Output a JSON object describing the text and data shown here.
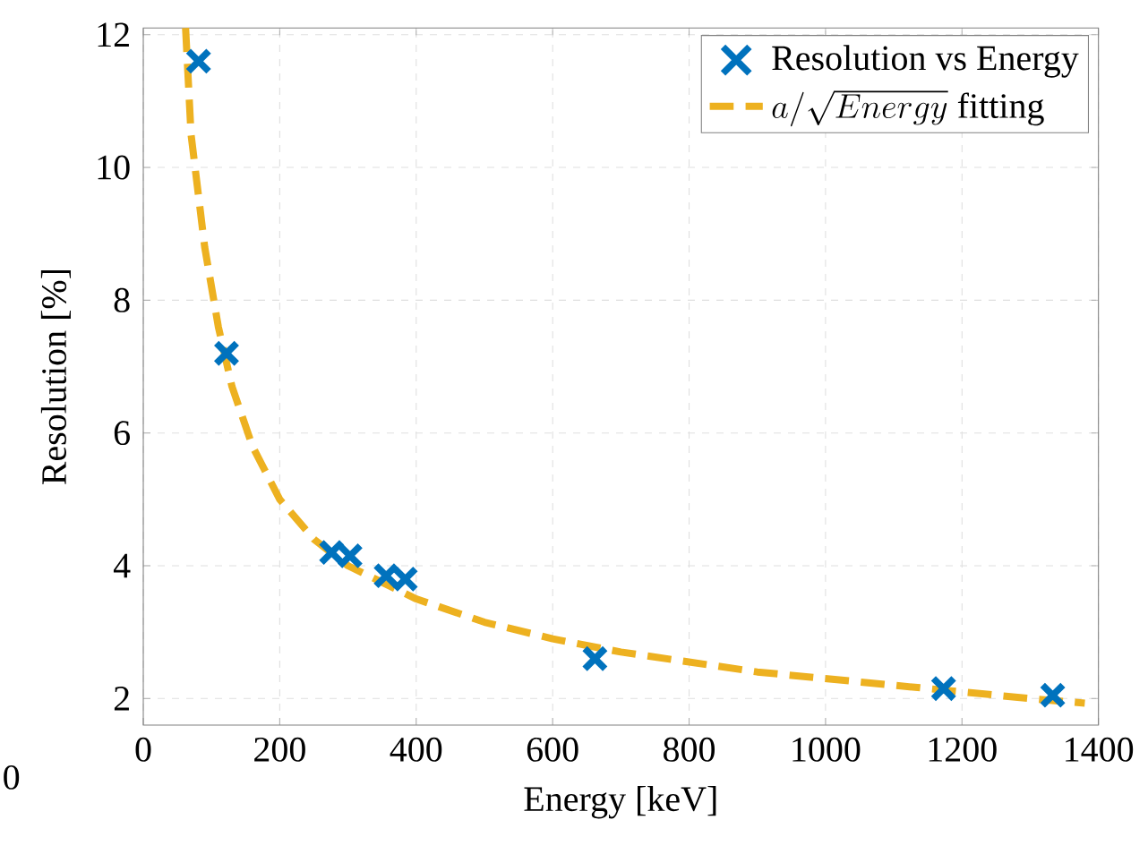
{
  "chart_data": {
    "type": "scatter",
    "xlabel": "Energy [keV]",
    "ylabel": "Resolution [%]",
    "xlim": [
      0,
      1400
    ],
    "ylim": [
      1.6,
      12.1
    ],
    "xticks": [
      0,
      200,
      400,
      600,
      800,
      1000,
      1200,
      1400
    ],
    "yticks": [
      2,
      4,
      6,
      8,
      10,
      12
    ],
    "grid": true,
    "legend": "top right",
    "annotations": [
      "0"
    ],
    "series": [
      {
        "name": "Resolution vs Energy",
        "marker": "cross",
        "color": "#0072bd",
        "x": [
          81,
          122,
          276,
          303,
          356,
          384,
          662,
          1173,
          1333
        ],
        "values": [
          11.6,
          7.2,
          4.2,
          4.15,
          3.85,
          3.8,
          2.6,
          2.15,
          2.05
        ]
      },
      {
        "name": "a/\\sqrt{Energy}\\ \\mathrm{fitting}",
        "type": "line",
        "line_style": "dashed",
        "marker": "none",
        "color": "#edb120",
        "x": [
          62,
          70,
          90,
          110,
          130,
          160,
          200,
          250,
          300,
          400,
          500,
          600,
          700,
          800,
          900,
          1000,
          1100,
          1200,
          1300,
          1380
        ],
        "values": [
          12.1,
          10.5,
          8.8,
          7.6,
          6.7,
          5.8,
          5.0,
          4.4,
          4.0,
          3.5,
          3.15,
          2.9,
          2.7,
          2.55,
          2.4,
          2.3,
          2.2,
          2.1,
          2.0,
          1.93
        ]
      }
    ]
  }
}
